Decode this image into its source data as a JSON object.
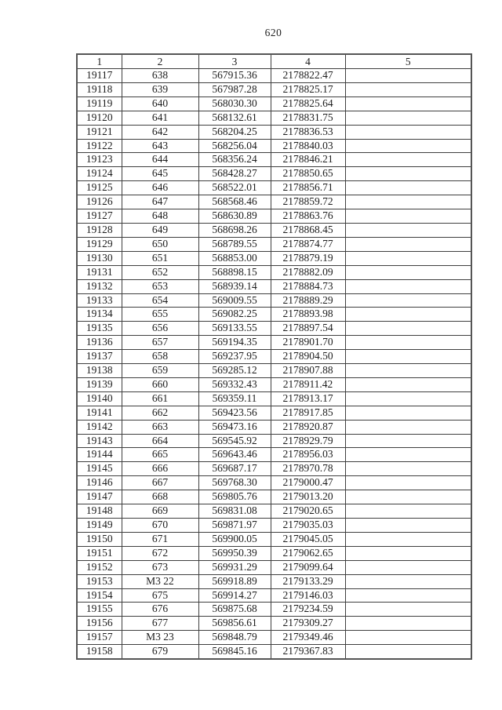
{
  "page": {
    "number": "620"
  },
  "table": {
    "headers": [
      "1",
      "2",
      "3",
      "4",
      "5"
    ],
    "rows": [
      [
        "19117",
        "638",
        "567915.36",
        "2178822.47",
        ""
      ],
      [
        "19118",
        "639",
        "567987.28",
        "2178825.17",
        ""
      ],
      [
        "19119",
        "640",
        "568030.30",
        "2178825.64",
        ""
      ],
      [
        "19120",
        "641",
        "568132.61",
        "2178831.75",
        ""
      ],
      [
        "19121",
        "642",
        "568204.25",
        "2178836.53",
        ""
      ],
      [
        "19122",
        "643",
        "568256.04",
        "2178840.03",
        ""
      ],
      [
        "19123",
        "644",
        "568356.24",
        "2178846.21",
        ""
      ],
      [
        "19124",
        "645",
        "568428.27",
        "2178850.65",
        ""
      ],
      [
        "19125",
        "646",
        "568522.01",
        "2178856.71",
        ""
      ],
      [
        "19126",
        "647",
        "568568.46",
        "2178859.72",
        ""
      ],
      [
        "19127",
        "648",
        "568630.89",
        "2178863.76",
        ""
      ],
      [
        "19128",
        "649",
        "568698.26",
        "2178868.45",
        ""
      ],
      [
        "19129",
        "650",
        "568789.55",
        "2178874.77",
        ""
      ],
      [
        "19130",
        "651",
        "568853.00",
        "2178879.19",
        ""
      ],
      [
        "19131",
        "652",
        "568898.15",
        "2178882.09",
        ""
      ],
      [
        "19132",
        "653",
        "568939.14",
        "2178884.73",
        ""
      ],
      [
        "19133",
        "654",
        "569009.55",
        "2178889.29",
        ""
      ],
      [
        "19134",
        "655",
        "569082.25",
        "2178893.98",
        ""
      ],
      [
        "19135",
        "656",
        "569133.55",
        "2178897.54",
        ""
      ],
      [
        "19136",
        "657",
        "569194.35",
        "2178901.70",
        ""
      ],
      [
        "19137",
        "658",
        "569237.95",
        "2178904.50",
        ""
      ],
      [
        "19138",
        "659",
        "569285.12",
        "2178907.88",
        ""
      ],
      [
        "19139",
        "660",
        "569332.43",
        "2178911.42",
        ""
      ],
      [
        "19140",
        "661",
        "569359.11",
        "2178913.17",
        ""
      ],
      [
        "19141",
        "662",
        "569423.56",
        "2178917.85",
        ""
      ],
      [
        "19142",
        "663",
        "569473.16",
        "2178920.87",
        ""
      ],
      [
        "19143",
        "664",
        "569545.92",
        "2178929.79",
        ""
      ],
      [
        "19144",
        "665",
        "569643.46",
        "2178956.03",
        ""
      ],
      [
        "19145",
        "666",
        "569687.17",
        "2178970.78",
        ""
      ],
      [
        "19146",
        "667",
        "569768.30",
        "2179000.47",
        ""
      ],
      [
        "19147",
        "668",
        "569805.76",
        "2179013.20",
        ""
      ],
      [
        "19148",
        "669",
        "569831.08",
        "2179020.65",
        ""
      ],
      [
        "19149",
        "670",
        "569871.97",
        "2179035.03",
        ""
      ],
      [
        "19150",
        "671",
        "569900.05",
        "2179045.05",
        ""
      ],
      [
        "19151",
        "672",
        "569950.39",
        "2179062.65",
        ""
      ],
      [
        "19152",
        "673",
        "569931.29",
        "2179099.64",
        ""
      ],
      [
        "19153",
        "М3 22",
        "569918.89",
        "2179133.29",
        ""
      ],
      [
        "19154",
        "675",
        "569914.27",
        "2179146.03",
        ""
      ],
      [
        "19155",
        "676",
        "569875.68",
        "2179234.59",
        ""
      ],
      [
        "19156",
        "677",
        "569856.61",
        "2179309.27",
        ""
      ],
      [
        "19157",
        "М3 23",
        "569848.79",
        "2179349.46",
        ""
      ],
      [
        "19158",
        "679",
        "569845.16",
        "2179367.83",
        ""
      ]
    ]
  }
}
